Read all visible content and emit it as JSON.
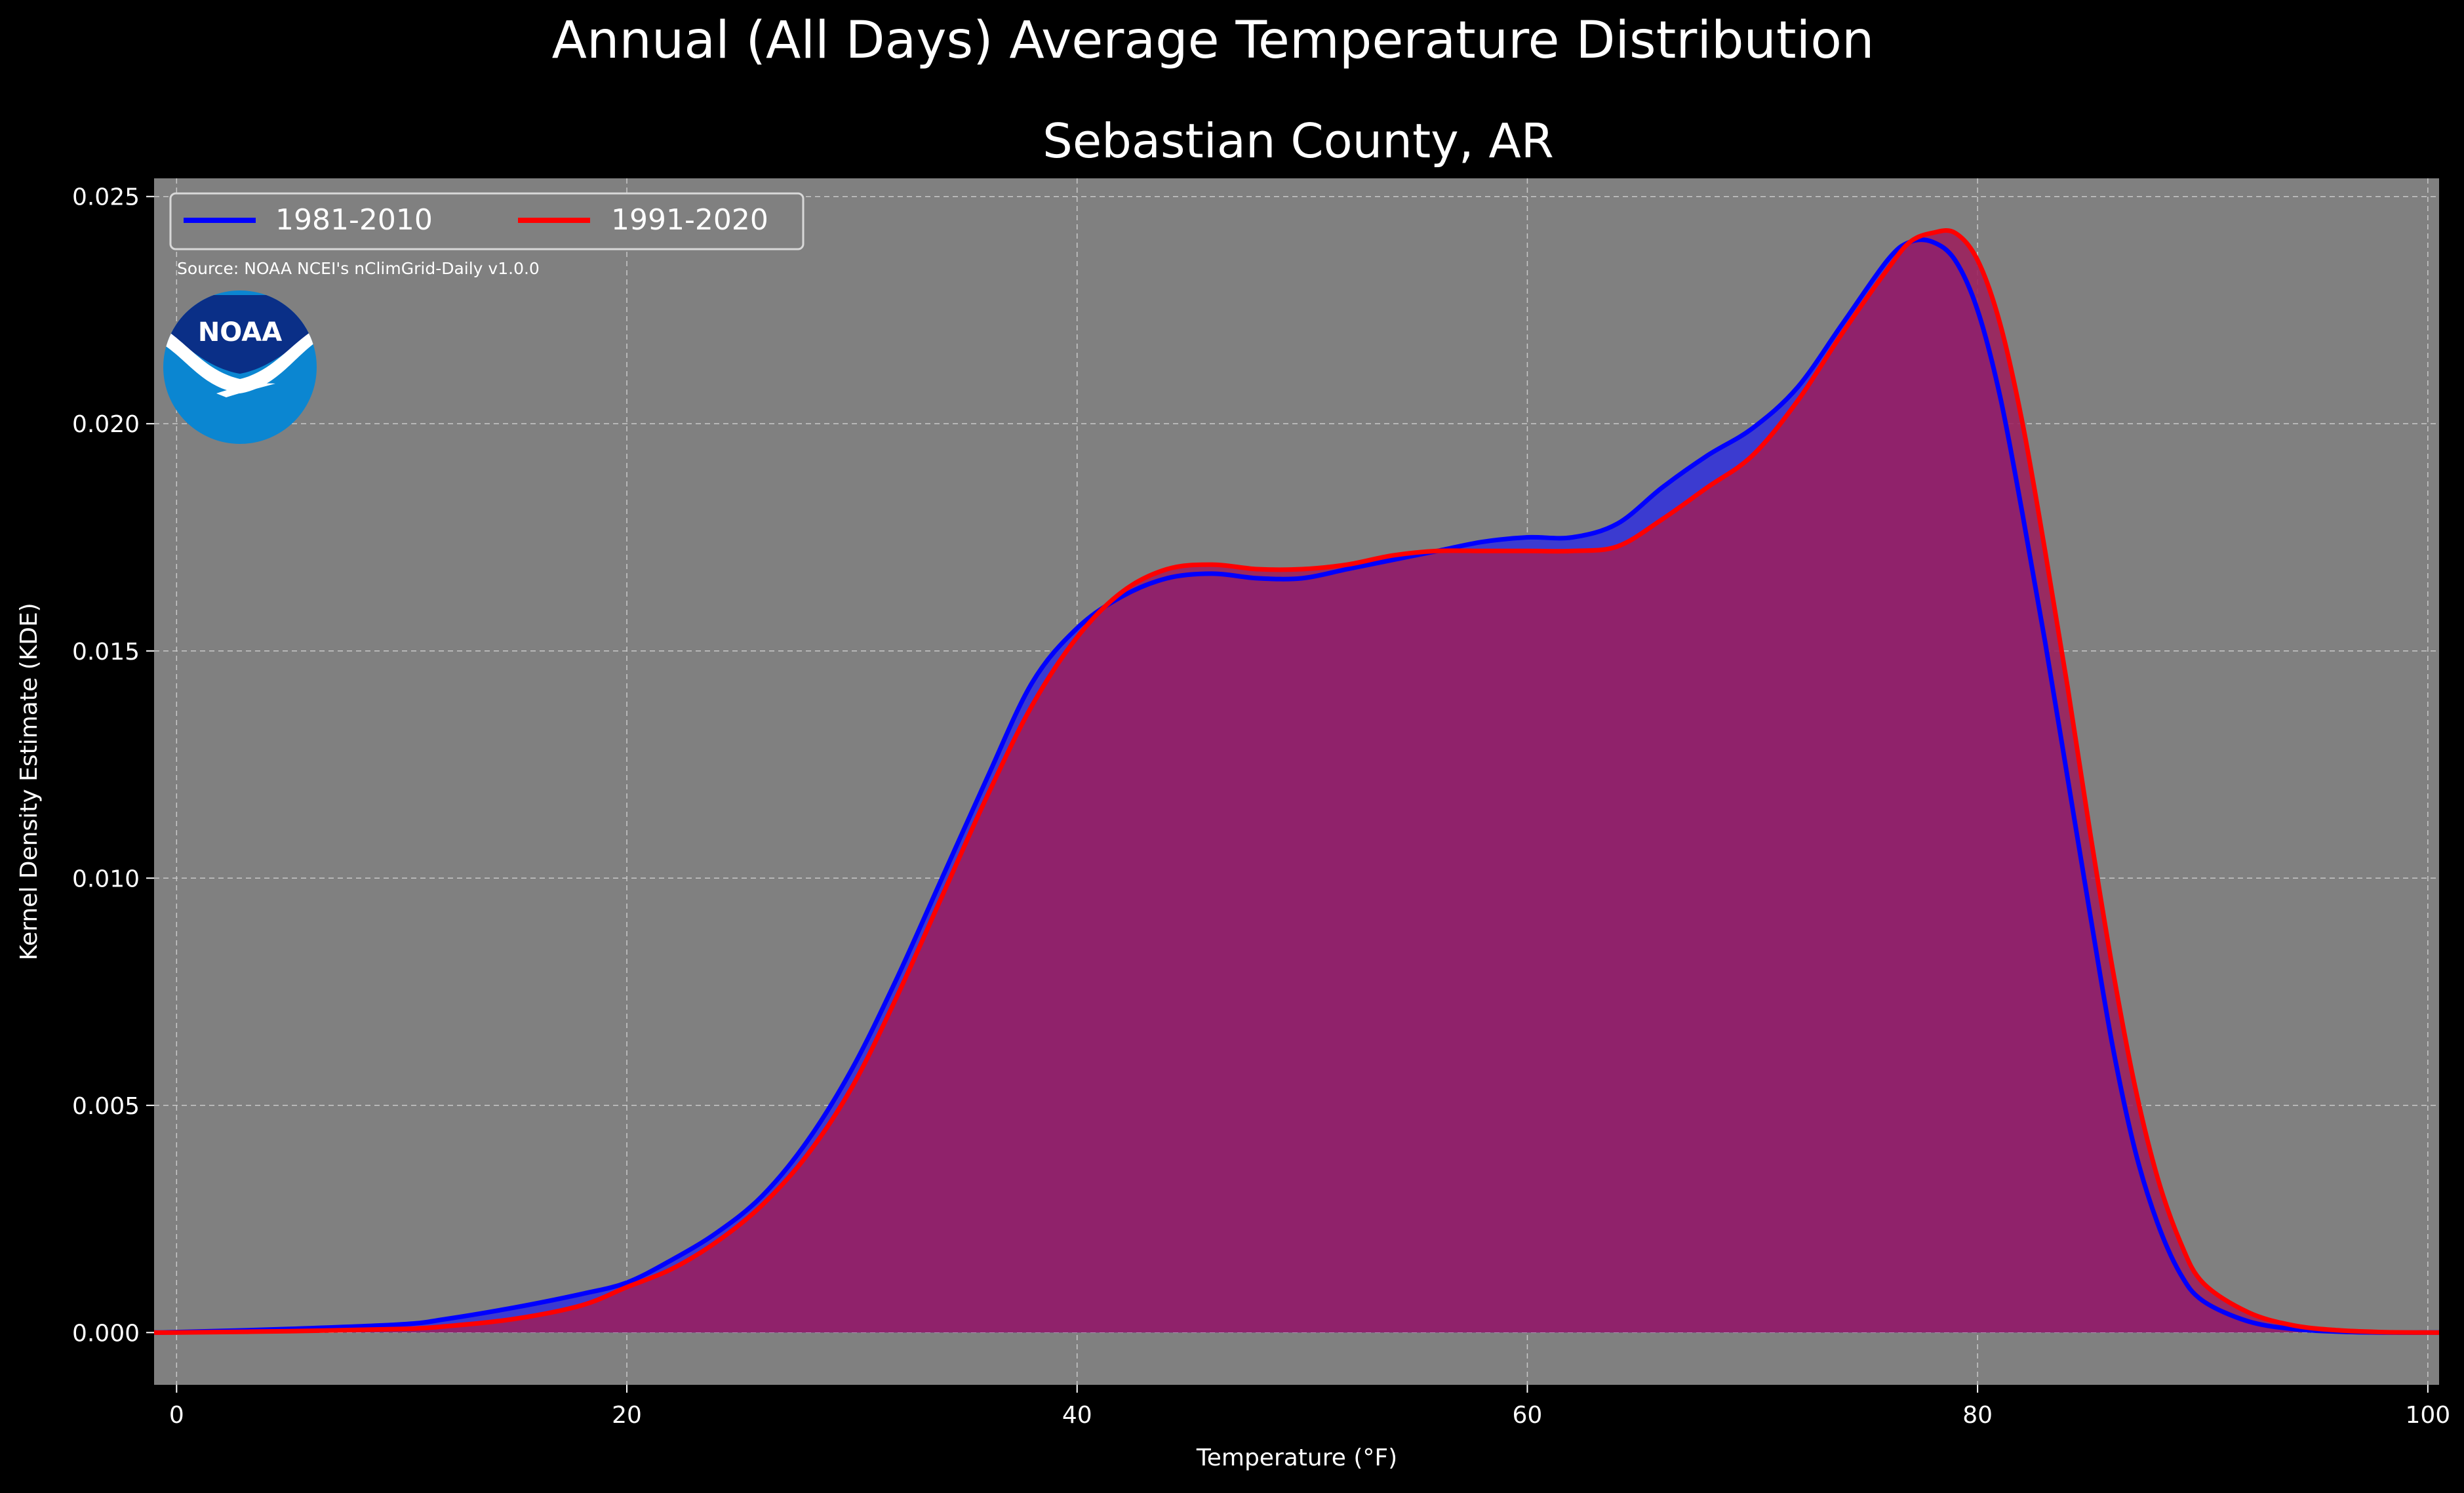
{
  "title": "Annual (All Days) Average Temperature Distribution",
  "subtitle": "Sebastian County, AR",
  "source": "Source: NOAA NCEI's nClimGrid-Daily v1.0.0",
  "logo_text": "NOAA",
  "colors": {
    "background": "#000000",
    "plot_bg": "#808080",
    "series1": "#0000ff",
    "series2": "#ff0000",
    "fill1": "#3b3bd0",
    "fill2": "#9c1f5c",
    "text": "#ffffff",
    "noaa_dark": "#0a2f87",
    "noaa_light": "#0b86d1"
  },
  "chart_data": {
    "type": "area",
    "title": "Annual (All Days) Average Temperature Distribution",
    "subtitle": "Sebastian County, AR",
    "xlabel": "Temperature (°F)",
    "ylabel": "Kernel Density Estimate (KDE)",
    "xlim": [
      -1,
      100.5
    ],
    "ylim": [
      -0.00115,
      0.0254
    ],
    "xticks": [
      0,
      20,
      40,
      60,
      80,
      100
    ],
    "yticks": [
      0.0,
      0.005,
      0.01,
      0.015,
      0.02,
      0.025
    ],
    "ytick_labels": [
      "0.000",
      "0.005",
      "0.010",
      "0.015",
      "0.020",
      "0.025"
    ],
    "grid": true,
    "legend": "top-left",
    "series": [
      {
        "name": "1981-2010",
        "color": "#0000ff",
        "x": [
          -1,
          0,
          5,
          10,
          12,
          15,
          18,
          20,
          22,
          24,
          26,
          28,
          30,
          32,
          34,
          36,
          38,
          40,
          42,
          44,
          46,
          48,
          50,
          52,
          54,
          56,
          58,
          60,
          62,
          64,
          66,
          68,
          70,
          72,
          74,
          76,
          77,
          78,
          79,
          80,
          81,
          82,
          83,
          84,
          85,
          86,
          87,
          88,
          89,
          90,
          92,
          94,
          96,
          98,
          100,
          100.5
        ],
        "y": [
          0.0,
          1e-05,
          8e-05,
          0.00018,
          0.0003,
          0.00055,
          0.00085,
          0.0011,
          0.0016,
          0.0022,
          0.003,
          0.0042,
          0.0058,
          0.0078,
          0.01,
          0.0122,
          0.0143,
          0.0155,
          0.0162,
          0.0166,
          0.0167,
          0.0166,
          0.0166,
          0.0168,
          0.017,
          0.0172,
          0.0174,
          0.0175,
          0.0175,
          0.0178,
          0.0186,
          0.0193,
          0.0199,
          0.0208,
          0.0222,
          0.0236,
          0.024,
          0.024,
          0.0236,
          0.0225,
          0.0206,
          0.018,
          0.0152,
          0.0122,
          0.0092,
          0.0063,
          0.004,
          0.0024,
          0.0013,
          0.0007,
          0.00025,
          8e-05,
          2e-05,
          0.0,
          0.0,
          0.0
        ]
      },
      {
        "name": "1991-2020",
        "color": "#ff0000",
        "x": [
          -1,
          0,
          5,
          10,
          12,
          15,
          18,
          20,
          22,
          24,
          26,
          28,
          30,
          32,
          34,
          36,
          38,
          40,
          42,
          44,
          46,
          48,
          50,
          52,
          54,
          56,
          58,
          60,
          62,
          64,
          66,
          68,
          70,
          72,
          74,
          76,
          77,
          78,
          79,
          80,
          81,
          82,
          83,
          84,
          85,
          86,
          87,
          88,
          89,
          90,
          92,
          94,
          96,
          98,
          100,
          100.5
        ],
        "y": [
          0.0,
          0.0,
          3e-05,
          8e-05,
          0.00014,
          0.0003,
          0.0006,
          0.001,
          0.0014,
          0.002,
          0.0028,
          0.0039,
          0.0054,
          0.0074,
          0.0096,
          0.0118,
          0.0138,
          0.0153,
          0.0163,
          0.0168,
          0.0169,
          0.0168,
          0.0168,
          0.0169,
          0.0171,
          0.0172,
          0.0172,
          0.0172,
          0.0172,
          0.0173,
          0.0179,
          0.0186,
          0.0193,
          0.0205,
          0.022,
          0.0234,
          0.024,
          0.0242,
          0.0242,
          0.0236,
          0.0222,
          0.02,
          0.0172,
          0.0142,
          0.011,
          0.008,
          0.0054,
          0.0034,
          0.002,
          0.0011,
          0.00045,
          0.00016,
          5e-05,
          1e-05,
          0.0,
          0.0
        ]
      }
    ]
  }
}
